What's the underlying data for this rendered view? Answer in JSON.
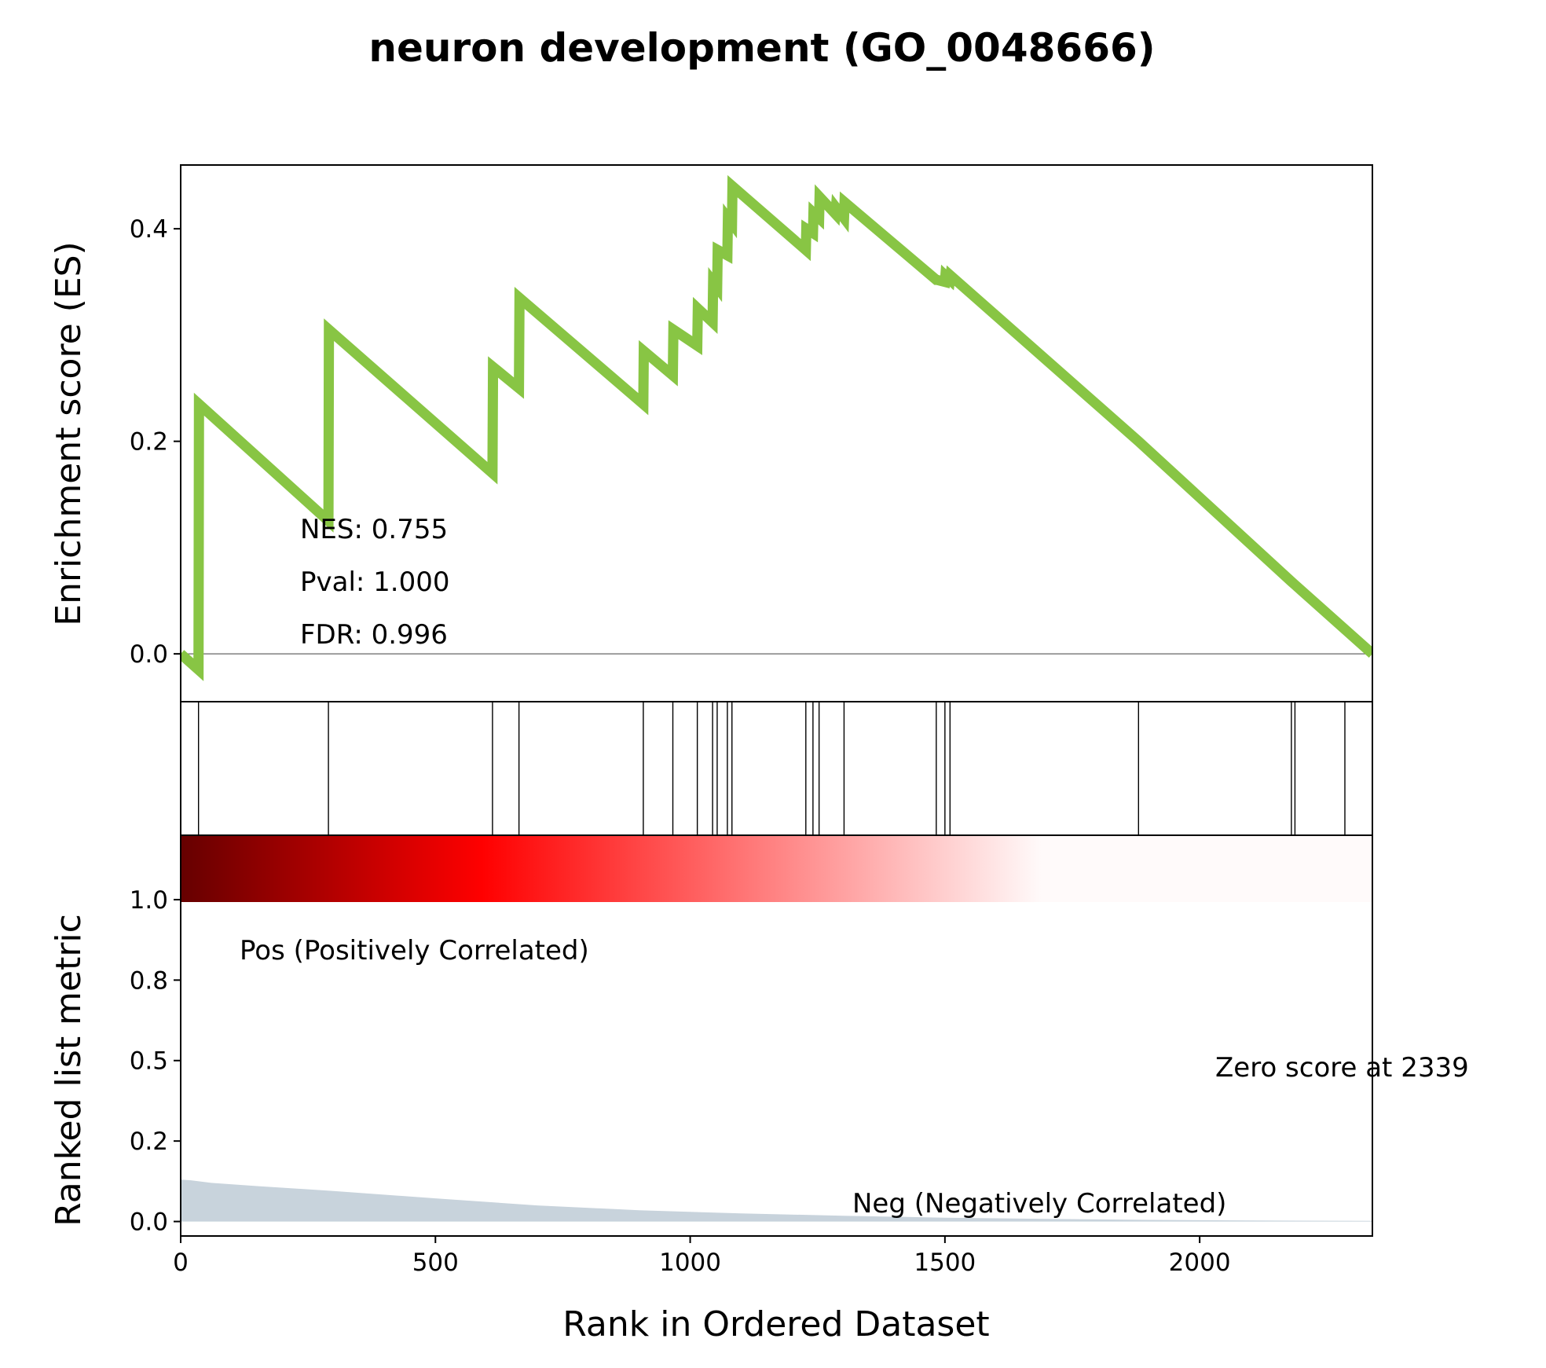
{
  "title": "neuron development (GO_0048666)",
  "colors": {
    "es_line": "#88c544",
    "hit_line": "#000000",
    "pos_label": "#ff0000",
    "neg_label": "#0000ff",
    "metric_fill": "#c8d3dc",
    "heat_dark": "#660000",
    "heat_mid": "#ff0000",
    "heat_light": "#fffafa"
  },
  "chart_data": [
    {
      "type": "line",
      "panel": "enrichment_score",
      "ylabel": "Enrichment score (ES)",
      "xlim": [
        0,
        2339
      ],
      "ylim": [
        -0.045,
        0.46
      ],
      "yticks": [
        "0.0",
        "0.2",
        "0.4"
      ],
      "ytick_values": [
        0.0,
        0.2,
        0.4
      ],
      "zero_line": true,
      "x": [
        0,
        35,
        36,
        290,
        291,
        612,
        613,
        664,
        665,
        908,
        909,
        966,
        967,
        1014,
        1015,
        1044,
        1045,
        1053,
        1054,
        1073,
        1074,
        1082,
        1083,
        1227,
        1228,
        1241,
        1242,
        1253,
        1254,
        1285,
        1286,
        1302,
        1303,
        1483,
        1484,
        1500,
        1501,
        1510,
        1511,
        1880,
        2180,
        2187,
        2339
      ],
      "y": [
        0.0,
        -0.015,
        0.235,
        0.125,
        0.305,
        0.17,
        0.27,
        0.25,
        0.335,
        0.235,
        0.285,
        0.262,
        0.305,
        0.29,
        0.325,
        0.312,
        0.35,
        0.345,
        0.38,
        0.375,
        0.41,
        0.405,
        0.44,
        0.38,
        0.4,
        0.396,
        0.415,
        0.41,
        0.43,
        0.414,
        0.42,
        0.41,
        0.425,
        0.352,
        0.352,
        0.35,
        0.356,
        0.352,
        0.356,
        0.2,
        0.068,
        0.065,
        0.0
      ],
      "annotations": {
        "nes": "NES: 0.755",
        "pval": "Pval: 1.000",
        "fdr": "FDR: 0.996"
      }
    },
    {
      "type": "hits",
      "panel": "gene_hits",
      "xlim": [
        0,
        2339
      ],
      "positions": [
        35,
        290,
        612,
        664,
        908,
        966,
        1014,
        1044,
        1053,
        1073,
        1082,
        1227,
        1241,
        1253,
        1302,
        1483,
        1500,
        1510,
        1880,
        2180,
        2187,
        2285
      ]
    },
    {
      "type": "area",
      "panel": "ranked_metric",
      "ylabel": "Ranked list metric",
      "xlabel": "Rank in Ordered Dataset",
      "xlim": [
        0,
        2339
      ],
      "ylim": [
        -0.045,
        1.2
      ],
      "xticks": [
        "0",
        "500",
        "1000",
        "1500",
        "2000"
      ],
      "xtick_values": [
        0,
        500,
        1000,
        1500,
        2000
      ],
      "yticks": [
        "0.0",
        "0.2",
        "0.5",
        "0.8",
        "1.0"
      ],
      "ytick_values": [
        0.0,
        0.25,
        0.5,
        0.75,
        1.0
      ],
      "x": [
        0,
        20,
        60,
        150,
        300,
        500,
        700,
        900,
        1100,
        1300,
        1500,
        1700,
        1900,
        2100,
        2339
      ],
      "y": [
        0.13,
        0.128,
        0.12,
        0.11,
        0.095,
        0.072,
        0.05,
        0.035,
        0.025,
        0.018,
        0.012,
        0.008,
        0.005,
        0.003,
        0.002
      ],
      "heatmap_extent": [
        0,
        1690
      ],
      "pos_label": "Pos (Positively Correlated)",
      "neg_label": "Neg (Negatively Correlated)",
      "zero_label": "Zero score at 2339"
    }
  ]
}
